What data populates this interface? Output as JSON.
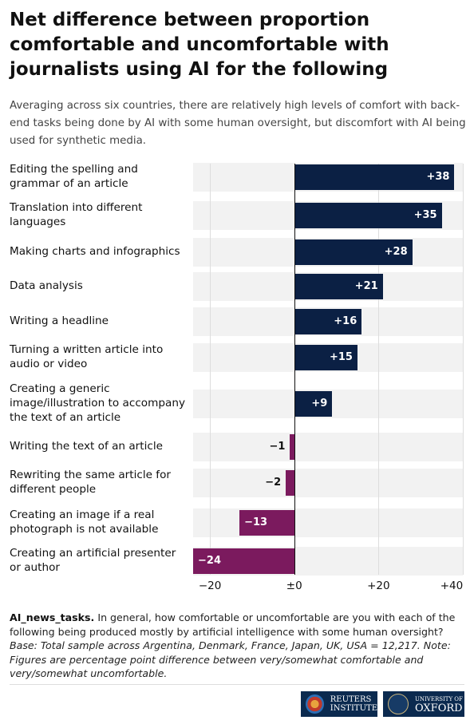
{
  "chart_data": {
    "type": "bar",
    "orientation": "horizontal",
    "title": "Net difference between proportion comfortable and uncomfortable with journalists using AI for the following",
    "subtitle": "Averaging across six countries, there are relatively high levels of comfort with back-end tasks being done by AI with some human oversight, but discomfort with AI being used for synthetic media.",
    "categories": [
      "Editing the spelling and grammar of an article",
      "Translation into different languages",
      "Making charts and infographics",
      "Data analysis",
      "Writing a headline",
      "Turning a written article into audio or video",
      "Creating a generic image/illustration to accompany the text of an article",
      "Writing the text of an article",
      "Rewriting the same article for different people",
      "Creating an image if a real photograph is not available",
      "Creating an artificial presenter or author"
    ],
    "values": [
      38,
      35,
      28,
      21,
      16,
      15,
      9,
      -1,
      -2,
      -13,
      -24
    ],
    "value_labels": [
      "+38",
      "+35",
      "+28",
      "+21",
      "+16",
      "+15",
      "+9",
      "−1",
      "−2",
      "−13",
      "−24"
    ],
    "color": "#0b2044",
    "negative_color": "#7b1a5e",
    "xlim": [
      -24,
      40
    ],
    "xticks": [
      {
        "value": -20,
        "label": "−20"
      },
      {
        "value": 0,
        "label": "±0"
      },
      {
        "value": 20,
        "label": "+20"
      },
      {
        "value": 40,
        "label": "+40"
      }
    ],
    "grid": true,
    "footnote": {
      "label": "AI_news_tasks.",
      "question": "In general, how comfortable or uncomfortable are you with each of the following being produced mostly by artificial intelligence with some human oversight?",
      "note": "Base: Total sample across Argentina, Denmark, France, Japan, UK, USA = 12,217. Note: Figures are percentage point difference between very/somewhat comfortable and very/somewhat uncomfortable."
    }
  },
  "footer": {
    "reuters": [
      "REUTERS",
      "INSTITUTE"
    ],
    "oxford": [
      "UNIVERSITY OF",
      "OXFORD"
    ]
  }
}
